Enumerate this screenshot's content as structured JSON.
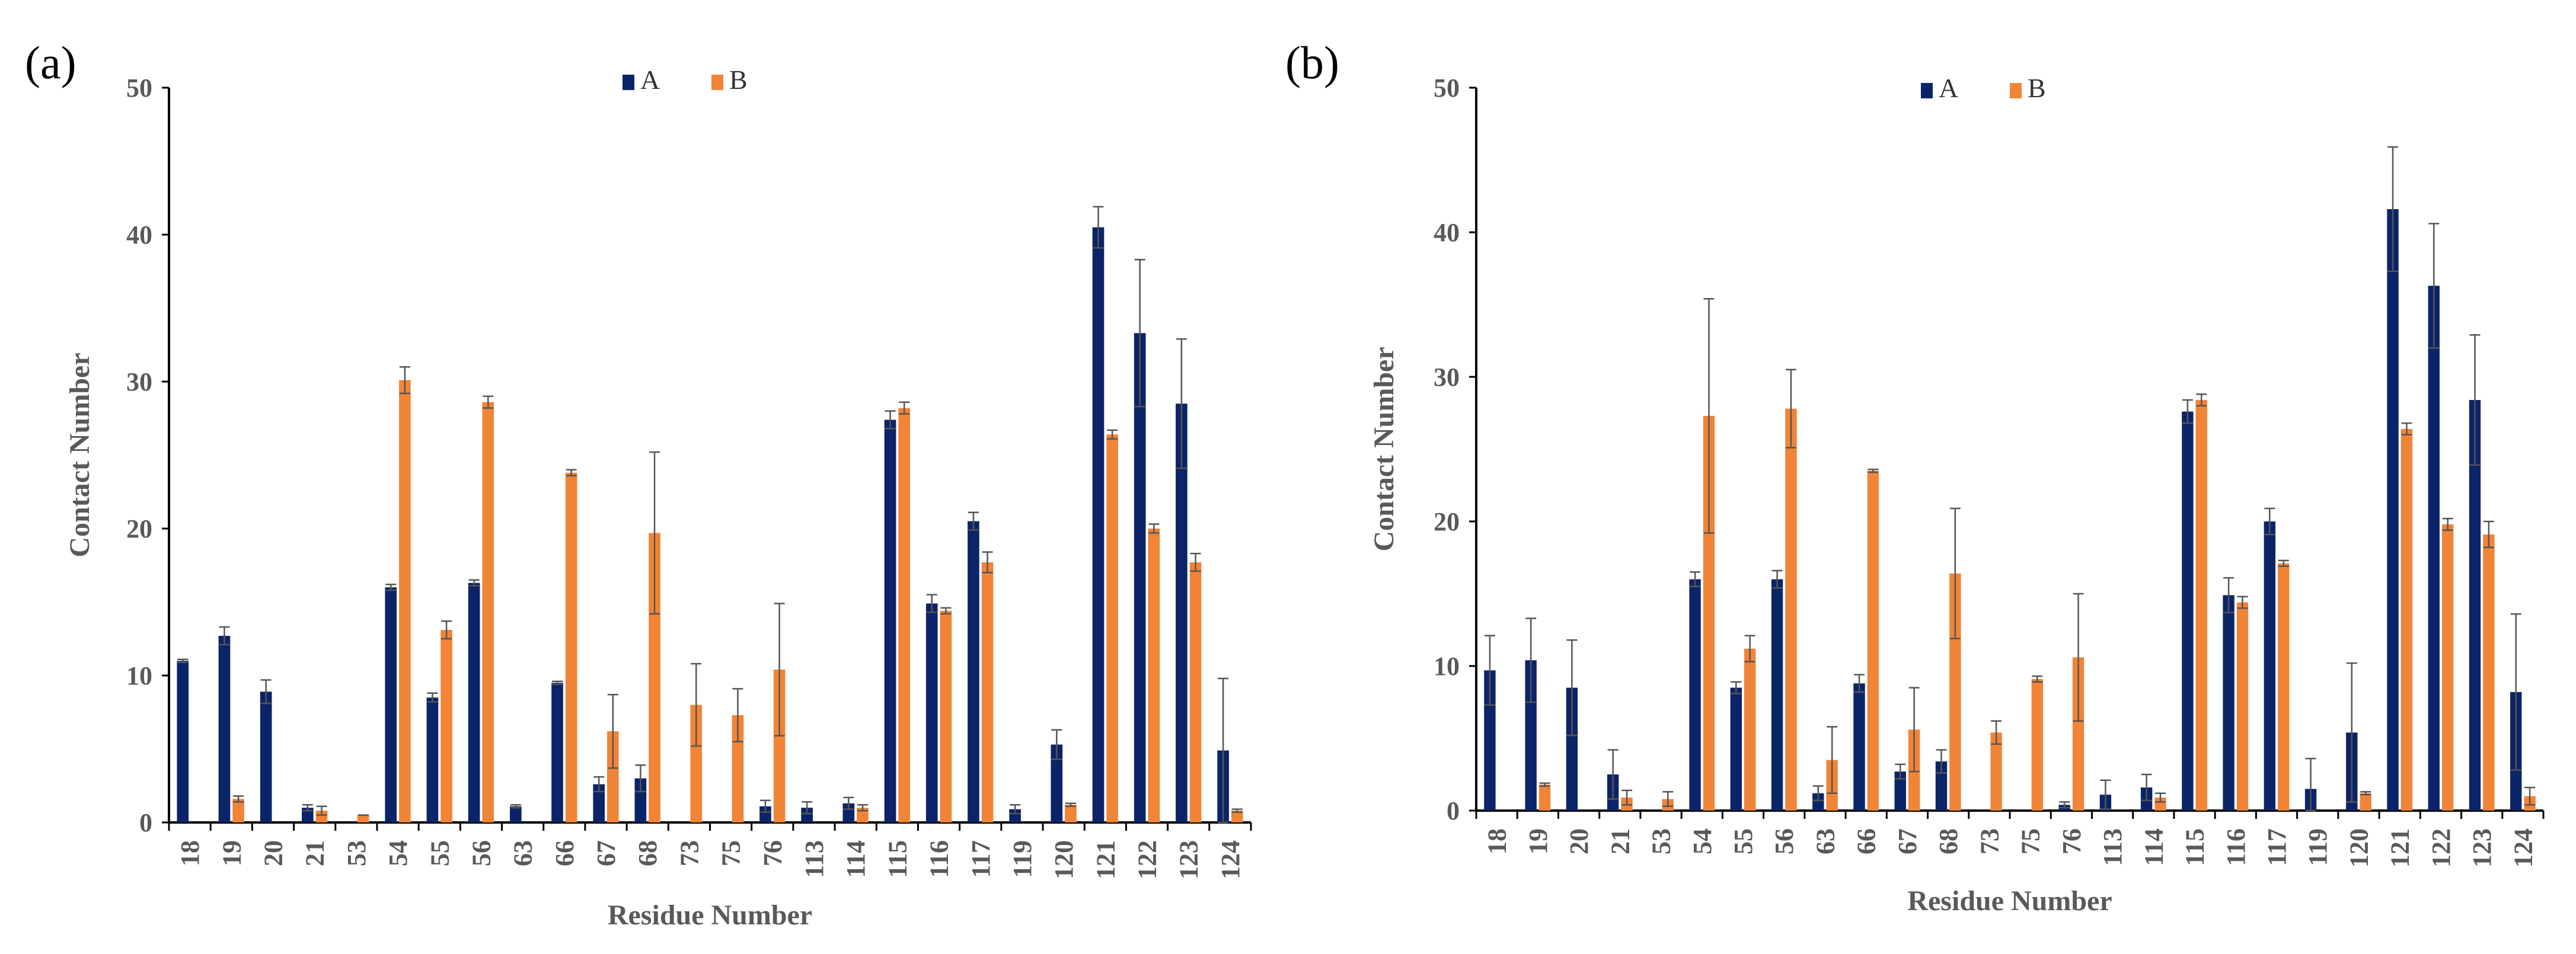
{
  "colors": {
    "A": "#0b2468",
    "B": "#f08437"
  },
  "chart_data": [
    {
      "panel_label": "(a)",
      "type": "bar",
      "xlabel": "Residue Number",
      "ylabel": "Contact Number",
      "ylim": [
        0,
        50
      ],
      "yticks": [
        "0",
        "10",
        "20",
        "30",
        "40",
        "50"
      ],
      "legend_position": "top-center",
      "categories": [
        "18",
        "19",
        "20",
        "21",
        "53",
        "54",
        "55",
        "56",
        "63",
        "66",
        "67",
        "68",
        "73",
        "75",
        "76",
        "113",
        "114",
        "115",
        "116",
        "117",
        "119",
        "120",
        "121",
        "122",
        "123",
        "124"
      ],
      "series": [
        {
          "name": "A",
          "values": [
            11.0,
            12.7,
            8.9,
            1.0,
            0,
            16.0,
            8.5,
            16.3,
            1.1,
            9.5,
            2.6,
            3.0,
            0,
            0,
            1.1,
            1.0,
            1.3,
            27.4,
            14.9,
            20.5,
            0.9,
            5.3,
            40.5,
            33.3,
            28.5,
            4.9
          ],
          "errors": [
            0.1,
            0.6,
            0.8,
            0.2,
            0,
            0.2,
            0.3,
            0.2,
            0.1,
            0.1,
            0.5,
            0.9,
            0,
            0,
            0.4,
            0.4,
            0.4,
            0.6,
            0.6,
            0.6,
            0.3,
            1.0,
            1.4,
            5.0,
            4.4,
            4.9
          ]
        },
        {
          "name": "B",
          "values": [
            0,
            1.6,
            0,
            0.8,
            0.5,
            30.1,
            13.1,
            28.6,
            0,
            23.8,
            6.2,
            19.7,
            8.0,
            7.3,
            10.4,
            0,
            1.0,
            28.2,
            14.4,
            17.7,
            0,
            1.2,
            26.4,
            20.0,
            17.7,
            0.8
          ],
          "errors": [
            0,
            0.2,
            0,
            0.3,
            0,
            0.9,
            0.6,
            0.4,
            0,
            0.2,
            2.5,
            5.5,
            2.8,
            1.8,
            4.5,
            0,
            0.2,
            0.4,
            0.2,
            0.7,
            0,
            0.1,
            0.3,
            0.3,
            0.6,
            0.1
          ]
        }
      ]
    },
    {
      "panel_label": "(b)",
      "type": "bar",
      "xlabel": "Residue Number",
      "ylabel": "Contact Number",
      "ylim": [
        0,
        50
      ],
      "yticks": [
        "0",
        "10",
        "20",
        "30",
        "40",
        "50"
      ],
      "legend_position": "top-center",
      "categories": [
        "18",
        "19",
        "20",
        "21",
        "53",
        "54",
        "55",
        "56",
        "63",
        "66",
        "67",
        "68",
        "73",
        "75",
        "76",
        "113",
        "114",
        "115",
        "116",
        "117",
        "119",
        "120",
        "121",
        "122",
        "123",
        "124"
      ],
      "series": [
        {
          "name": "A",
          "values": [
            9.7,
            10.4,
            8.5,
            2.5,
            0,
            16.0,
            8.5,
            16.0,
            1.2,
            8.8,
            2.7,
            3.4,
            0,
            0,
            0.4,
            1.1,
            1.6,
            27.6,
            14.9,
            20.0,
            1.5,
            5.4,
            41.6,
            36.3,
            28.4,
            8.2
          ],
          "errors": [
            2.4,
            2.9,
            3.3,
            1.7,
            0,
            0.5,
            0.4,
            0.6,
            0.5,
            0.6,
            0.5,
            0.8,
            0,
            0,
            0.2,
            1.0,
            0.9,
            0.8,
            1.2,
            0.9,
            2.1,
            4.8,
            4.3,
            4.3,
            4.5,
            5.4
          ]
        },
        {
          "name": "B",
          "values": [
            0,
            1.8,
            0,
            0.9,
            0.8,
            27.3,
            11.2,
            27.8,
            3.5,
            23.5,
            5.6,
            16.4,
            5.4,
            9.1,
            10.6,
            0,
            0.9,
            28.4,
            14.4,
            17.1,
            0,
            1.2,
            26.4,
            19.8,
            19.1,
            1.0
          ],
          "errors": [
            0,
            0.1,
            0,
            0.5,
            0.5,
            8.1,
            0.9,
            2.7,
            2.3,
            0.1,
            2.9,
            4.5,
            0.8,
            0.2,
            4.4,
            0,
            0.3,
            0.4,
            0.4,
            0.2,
            0,
            0.1,
            0.4,
            0.4,
            0.9,
            0.6
          ]
        }
      ]
    }
  ]
}
